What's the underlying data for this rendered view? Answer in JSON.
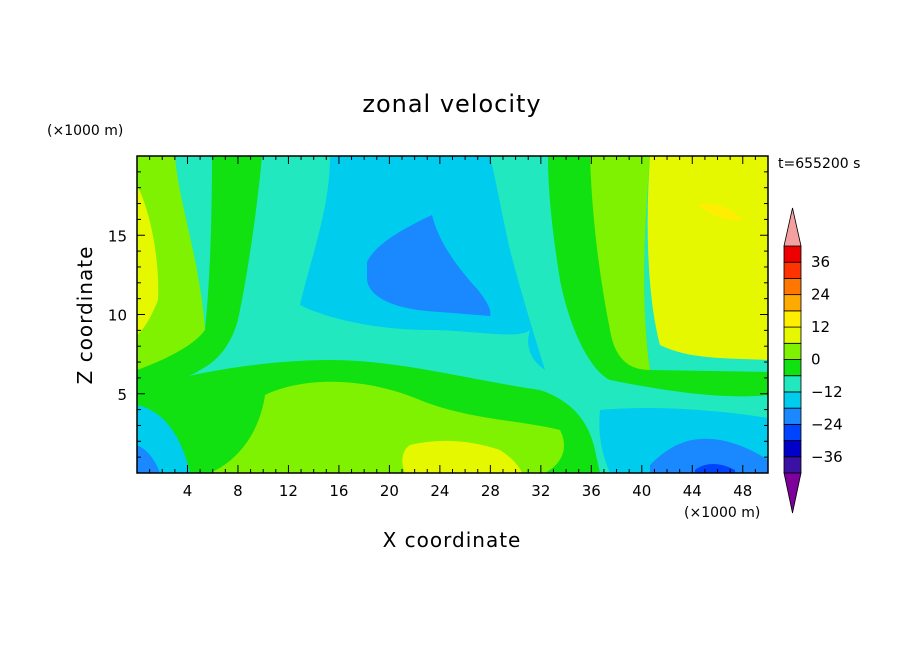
{
  "chart_data": {
    "type": "heatmap",
    "title": "zonal velocity",
    "xlabel": "X coordinate",
    "ylabel": "Z coordinate",
    "x_unit": "(×1000 m)",
    "y_unit": "(×1000 m)",
    "time_label": "t=655200 s",
    "xlim": [
      0,
      50
    ],
    "ylim": [
      0,
      20
    ],
    "x_ticks": [
      4,
      8,
      12,
      16,
      20,
      24,
      28,
      32,
      36,
      40,
      44,
      48
    ],
    "y_ticks": [
      5,
      10,
      15
    ],
    "x_tick_labels": [
      "4",
      "8",
      "12",
      "16",
      "20",
      "24",
      "28",
      "32",
      "36",
      "40",
      "44",
      "48"
    ],
    "y_tick_labels": [
      "5",
      "10",
      "15"
    ],
    "colorbar": {
      "levels": [
        -42,
        -36,
        -30,
        -24,
        -18,
        -12,
        -6,
        0,
        6,
        12,
        18,
        24,
        30,
        36,
        42
      ],
      "labels": [
        "36",
        "24",
        "12",
        "0",
        "−12",
        "−24",
        "−36"
      ],
      "label_values": [
        36,
        24,
        12,
        0,
        -12,
        -24,
        -36
      ],
      "colors": [
        "#7c0099",
        "#3a11a3",
        "#0000c8",
        "#0044ff",
        "#1a88ff",
        "#00ccee",
        "#22e8c0",
        "#11e011",
        "#7ef200",
        "#e6f800",
        "#ffee00",
        "#ffaa00",
        "#ff7700",
        "#ff3300",
        "#ee0000",
        "#f4a0a0"
      ]
    },
    "field_regions": [
      {
        "value": -18,
        "label": "upper blue core",
        "x": [
          18,
          31
        ],
        "z": [
          10,
          16
        ]
      },
      {
        "value": -18,
        "label": "lower right blue patch",
        "x": [
          41,
          49
        ],
        "z": [
          0,
          2
        ]
      },
      {
        "value": 15,
        "label": "upper right yellow",
        "x": [
          40,
          50
        ],
        "z": [
          8,
          20
        ]
      },
      {
        "value": 12,
        "label": "lower centre yellow",
        "x": [
          23,
          29
        ],
        "z": [
          0,
          2
        ]
      },
      {
        "value": 3,
        "label": "green band",
        "x": [
          6,
          10
        ],
        "z": [
          3,
          20
        ]
      }
    ]
  }
}
